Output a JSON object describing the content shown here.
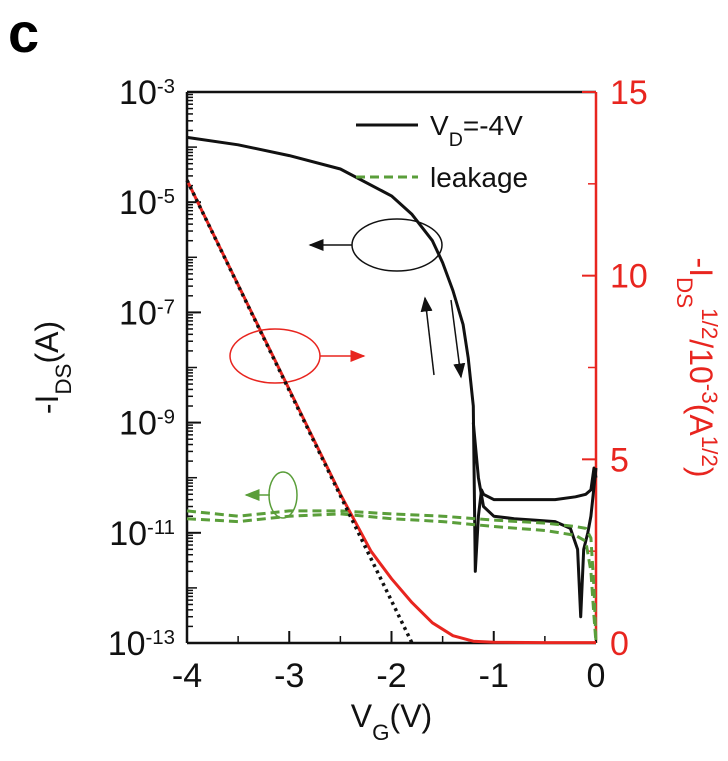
{
  "chart_data": {
    "type": "line",
    "panel_label": "c",
    "xlabel": [
      {
        "text": "V"
      },
      {
        "text": "G",
        "shift": "sub"
      },
      {
        "text": "(V)"
      }
    ],
    "ylabel": [
      {
        "text": "-I"
      },
      {
        "text": "DS",
        "shift": "sub"
      },
      {
        "text": "(A)"
      }
    ],
    "y2label": [
      {
        "text": "-I"
      },
      {
        "text": "DS",
        "shift": "sub"
      },
      {
        "text": "1/2",
        "shift": "super"
      },
      {
        "text": "/10"
      },
      {
        "text": "-3",
        "shift": "super"
      },
      {
        "text": "(A"
      },
      {
        "text": "1/2",
        "shift": "super"
      },
      {
        "text": ")"
      }
    ],
    "xlim": [
      -4,
      0
    ],
    "xticks": [
      -4,
      -3,
      -2,
      -1,
      0
    ],
    "ylim": [
      1e-13,
      0.001
    ],
    "ylog": true,
    "yticks": [
      {
        "value": 0.001,
        "label": "10",
        "sup": "-3"
      },
      {
        "value": 1e-05,
        "label": "10",
        "sup": "-5"
      },
      {
        "value": 1e-07,
        "label": "10",
        "sup": "-7"
      },
      {
        "value": 1e-09,
        "label": "10",
        "sup": "-9"
      },
      {
        "value": 1e-11,
        "label": "10",
        "sup": "-11"
      },
      {
        "value": 1e-13,
        "label": "10",
        "sup": "-13"
      }
    ],
    "y2lim": [
      0,
      15
    ],
    "y2ticks": [
      0,
      5,
      10,
      15
    ],
    "y2color": "#e8251f",
    "legend": "upper right",
    "series": [
      {
        "name": [
          {
            "text": "V"
          },
          {
            "text": "D",
            "shift": "sub"
          },
          {
            "text": "=-4V"
          }
        ],
        "color": "#111111",
        "dash": "solid",
        "x": [
          -4,
          -3.5,
          -3,
          -2.5,
          -2,
          -1.8,
          -1.6,
          -1.5,
          -1.4,
          -1.3,
          -1.25,
          -1.2,
          -1.18,
          -1.15,
          -1.12,
          -1.1,
          -1,
          -0.8,
          -0.6,
          -0.4,
          -0.2,
          -0.1,
          -0.05,
          -0.02,
          0
        ],
        "values": [
          0.00015,
          0.00011,
          7e-05,
          4e-05,
          1.3e-05,
          6e-06,
          2e-06,
          8e-07,
          2.5e-07,
          6e-08,
          1.5e-08,
          2e-09,
          2e-12,
          2e-11,
          6e-11,
          5e-11,
          4e-11,
          4e-11,
          4e-11,
          4e-11,
          4.5e-11,
          5e-11,
          6e-11,
          1.5e-10,
          1e-10
        ]
      },
      {
        "color": "#111111",
        "dash": "solid",
        "x": [
          -1.2,
          -1.15,
          -1.1,
          -1,
          -0.8,
          -0.6,
          -0.4,
          -0.25,
          -0.18,
          -0.15,
          -0.12,
          -0.08,
          -0.05,
          0
        ],
        "values": [
          1e-09,
          1e-10,
          3e-11,
          2e-11,
          1.8e-11,
          1.7e-11,
          1.6e-11,
          1.2e-11,
          5e-12,
          3e-13,
          5e-12,
          1e-11,
          2e-11,
          1.5e-10
        ]
      },
      {
        "name": [
          {
            "text": "leakage"
          }
        ],
        "color": "#5a9e3a",
        "dash": "dashed",
        "x": [
          -4,
          -3.5,
          -3,
          -2.5,
          -2,
          -1.5,
          -1,
          -0.5,
          -0.2,
          -0.1,
          -0.05,
          -0.02,
          0
        ],
        "values": [
          2.5e-11,
          2e-11,
          2.5e-11,
          2.5e-11,
          2.2e-11,
          2e-11,
          1.7e-11,
          1.5e-11,
          1.3e-11,
          1.2e-11,
          8e-12,
          1e-12,
          1e-13
        ]
      },
      {
        "color": "#5a9e3a",
        "dash": "dashed",
        "x": [
          -4,
          -3.5,
          -3,
          -2.5,
          -2,
          -1.5,
          -1,
          -0.5,
          -0.2,
          -0.1,
          -0.05,
          -0.02,
          0
        ],
        "values": [
          1.8e-11,
          1.6e-11,
          2e-11,
          2.2e-11,
          1.8e-11,
          1.6e-11,
          1.3e-11,
          1.1e-11,
          9e-12,
          7e-12,
          2e-12,
          3e-13,
          1e-13
        ]
      },
      {
        "color": "#e8251f",
        "dash": "solid",
        "axis": "y2",
        "x": [
          -4,
          -3.5,
          -3,
          -2.5,
          -2.2,
          -2,
          -1.8,
          -1.6,
          -1.4,
          -1.2,
          -1,
          -0.5,
          0
        ],
        "values": [
          12.6,
          9.75,
          6.9,
          4.05,
          2.5,
          1.75,
          1.1,
          0.55,
          0.2,
          0.05,
          0.02,
          0.01,
          0.01
        ]
      },
      {
        "color": "#111111",
        "dash": "dotted",
        "axis": "y2",
        "x": [
          -4,
          -1.8
        ],
        "values": [
          12.6,
          0
        ]
      }
    ]
  }
}
